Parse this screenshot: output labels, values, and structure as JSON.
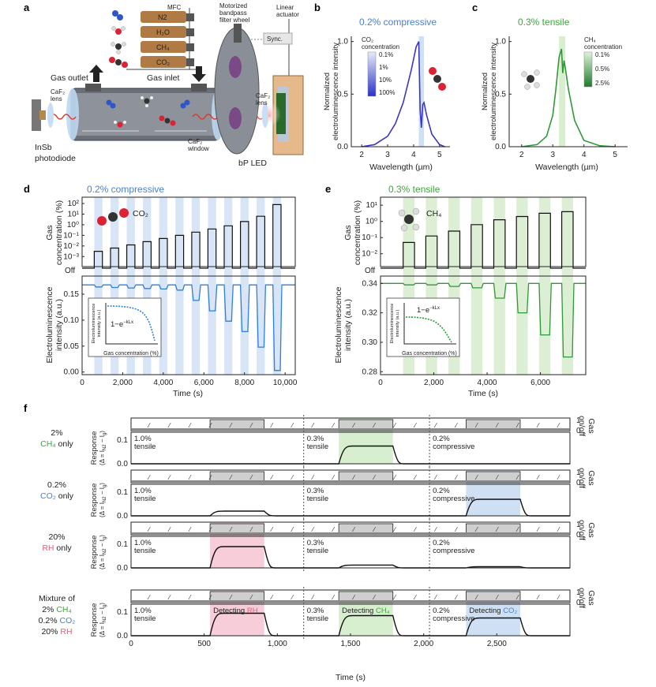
{
  "panel_labels": {
    "a": "a",
    "b": "b",
    "c": "c",
    "d": "d",
    "e": "e",
    "f": "f"
  },
  "panel_a": {
    "mfc": "MFC",
    "gases": [
      "N2",
      "H₂O",
      "CH₄",
      "CO₂"
    ],
    "wheel": [
      "Motorized",
      "bandpass",
      "filter wheel"
    ],
    "actuator": [
      "Linear",
      "actuator"
    ],
    "sync": "Sync.",
    "gas_outlet": "Gas outlet",
    "gas_inlet": "Gas inlet",
    "caf2_lens_left": [
      "CaF₂",
      "lens"
    ],
    "caf2_lens_right": [
      "CaF₂",
      "lens"
    ],
    "caf2_window": [
      "CaF₂",
      "window"
    ],
    "photodiode": [
      "InSb",
      "photodiode"
    ],
    "led": "bP LED"
  },
  "panel_b": {
    "title": "0.2% compressive",
    "ylabel": [
      "Normalized",
      "electroluminescence intensity"
    ],
    "xlabel": "Wavelength (µm)",
    "legend_title": [
      "CO₂",
      "concentration"
    ],
    "legend_entries": [
      "0.1%",
      "1%",
      "10%",
      "100%"
    ]
  },
  "panel_c": {
    "title": "0.3% tensile",
    "ylabel": [
      "Normalized",
      "electroluminescence intensity"
    ],
    "xlabel": "Wavelength (µm)",
    "legend_title": [
      "CH₄",
      "concentration"
    ],
    "legend_entries": [
      "0.1%",
      "0.5%",
      "2.5%"
    ]
  },
  "panel_d": {
    "title": "0.2% compressive",
    "gas": "CO₂",
    "ylabel_top": [
      "Gas",
      "concentration (%)"
    ],
    "ylabel_bottom": [
      "Electroluminescence",
      "intensity (a.u.)"
    ],
    "xlabel": "Time (s)",
    "off_label": "Off",
    "inset_ylabel": [
      "Electroluminescence",
      "intensity (a.u.)"
    ],
    "inset_xlabel": "Gas concentration (%)",
    "inset_formula": "1−e",
    "inset_formula_exp": "−kLx"
  },
  "panel_e": {
    "title": "0.3% tensile",
    "gas": "CH₄",
    "ylabel_top": [
      "Gas",
      "concentration (%)"
    ],
    "ylabel_bottom": [
      "Electroluminescence",
      "intensity (a.u.)"
    ],
    "xlabel": "Time (s)",
    "off_label": "Off",
    "inset_ylabel": [
      "Electroluminescence",
      "intensity (a.u.)"
    ],
    "inset_xlabel": "Gas concentration (%)",
    "inset_formula": "1−e",
    "inset_formula_exp": "−kLx"
  },
  "panel_f": {
    "rows": [
      {
        "label": [
          "2%",
          "CH₄",
          "only"
        ],
        "gas_color": "#3aa83a"
      },
      {
        "label": [
          "0.2%",
          "CO₂",
          "only"
        ],
        "gas_color": "#4a7fd0"
      },
      {
        "label": [
          "20%",
          "RH",
          "only"
        ],
        "gas_color": "#e0607a"
      },
      {
        "label": [
          "Mixture of",
          "2% CH₄",
          "0.2% CO₂",
          "20% RH"
        ],
        "gas_color": "#222222"
      }
    ],
    "ylabel": [
      "Response",
      "(Δ = I",
      "N2",
      " − I",
      "g",
      ")"
    ],
    "gas_onoff": [
      "Gas",
      "on/off"
    ],
    "sections": [
      {
        "strain": [
          "1.0%",
          "tensile"
        ]
      },
      {
        "strain": [
          "0.3%",
          "tensile"
        ]
      },
      {
        "strain": [
          "0.2%",
          "compressive"
        ]
      }
    ],
    "detecting": [
      "Detecting ",
      "RH",
      "CH₄",
      "CO₂"
    ],
    "xlabel": "Time (s)"
  },
  "chart_data": [
    {
      "id": "b",
      "type": "line",
      "title": "0.2% compressive",
      "xlabel": "Wavelength (µm)",
      "ylabel": "Normalized electroluminescence intensity",
      "xlim": [
        1.6,
        5.4
      ],
      "ylim": [
        0,
        1.05
      ],
      "xticks": [
        2,
        3,
        4,
        5
      ],
      "yticks": [
        0.0,
        0.5,
        1.0
      ],
      "highlight_band": [
        4.2,
        4.4
      ],
      "series": [
        {
          "name": "spectrum",
          "x": [
            2.0,
            2.5,
            3.0,
            3.3,
            3.6,
            3.9,
            4.1,
            4.2,
            4.25,
            4.3,
            4.35,
            4.4,
            4.5,
            4.7,
            5.0,
            5.2
          ],
          "y": [
            0.0,
            0.02,
            0.1,
            0.22,
            0.42,
            0.72,
            0.95,
            1.0,
            0.35,
            0.18,
            0.4,
            0.42,
            0.3,
            0.12,
            0.02,
            0.0
          ]
        }
      ]
    },
    {
      "id": "c",
      "type": "line",
      "title": "0.3% tensile",
      "xlabel": "Wavelength (µm)",
      "ylabel": "Normalized electroluminescence intensity",
      "xlim": [
        1.6,
        5.4
      ],
      "ylim": [
        0,
        1.05
      ],
      "xticks": [
        2,
        3,
        4,
        5
      ],
      "yticks": [
        0.0,
        0.5,
        1.0
      ],
      "highlight_band": [
        3.2,
        3.4
      ],
      "series": [
        {
          "name": "spectrum",
          "x": [
            2.0,
            2.5,
            2.8,
            3.0,
            3.1,
            3.2,
            3.28,
            3.32,
            3.36,
            3.4,
            3.5,
            3.7,
            4.0,
            4.5,
            5.0
          ],
          "y": [
            0.0,
            0.02,
            0.1,
            0.3,
            0.55,
            0.85,
            0.93,
            0.7,
            0.82,
            0.75,
            0.55,
            0.25,
            0.06,
            0.01,
            0.0
          ]
        }
      ]
    },
    {
      "id": "d",
      "type": "line",
      "title": "0.2% compressive",
      "xlabel": "Time (s)",
      "xlim": [
        0,
        10500
      ],
      "xticks": [
        0,
        2000,
        4000,
        6000,
        8000,
        10000
      ],
      "xticklabels": [
        "0",
        "2,000",
        "4,000",
        "6,000",
        "8,000",
        "10,000"
      ],
      "top_yticks": [
        "10²",
        "10¹",
        "10⁰",
        "10⁻¹",
        "10⁻²",
        "10⁻³"
      ],
      "bottom_ylim": [
        -0.005,
        0.185
      ],
      "bottom_yticks": [
        0.0,
        0.05,
        0.1,
        0.15
      ],
      "pulse_start_s": [
        600,
        1400,
        2200,
        3000,
        3800,
        4600,
        5400,
        6200,
        7000,
        7800,
        8600,
        9400
      ],
      "pulse_log_concentration": [
        -2.5,
        -2.2,
        -1.9,
        -1.6,
        -1.3,
        -1.0,
        -0.7,
        -0.4,
        -0.1,
        0.3,
        0.8,
        1.9
      ],
      "pulse_intensity_drop": [
        0.004,
        0.005,
        0.006,
        0.007,
        0.008,
        0.01,
        0.03,
        0.05,
        0.07,
        0.09,
        0.12,
        0.165
      ],
      "baseline": 0.168
    },
    {
      "id": "e",
      "type": "line",
      "title": "0.3% tensile",
      "xlabel": "Time (s)",
      "xlim": [
        0,
        7700
      ],
      "xticks": [
        0,
        2000,
        4000,
        6000
      ],
      "xticklabels": [
        "0",
        "2,000",
        "4,000",
        "6,000"
      ],
      "top_yticks": [
        "10¹",
        "10⁰",
        "10⁻¹",
        "10⁻²"
      ],
      "bottom_ylim": [
        0.278,
        0.345
      ],
      "bottom_yticks": [
        0.28,
        0.3,
        0.32,
        0.34
      ],
      "pulse_start_s": [
        850,
        1700,
        2550,
        3400,
        4250,
        5100,
        5950,
        6800
      ],
      "pulse_log_concentration": [
        -1.3,
        -0.9,
        -0.6,
        -0.2,
        0.1,
        0.3,
        0.5,
        0.6
      ],
      "pulse_intensity_drop": [
        0.001,
        0.001,
        0.002,
        0.003,
        0.01,
        0.02,
        0.035,
        0.05
      ],
      "baseline": 0.34
    },
    {
      "id": "f",
      "type": "line",
      "xlabel": "Time (s)",
      "xlim": [
        0,
        3000
      ],
      "xticks": [
        0,
        500,
        1000,
        1500,
        2000,
        2500
      ],
      "xticklabels": [
        "0",
        "500",
        "1,000",
        "1,500",
        "2,000",
        "2,500"
      ],
      "yticks": [
        0.0,
        0.1
      ],
      "section_boundaries_s": [
        1180,
        2040
      ],
      "gas_on_windows_s": [
        [
          540,
          910
        ],
        [
          1420,
          1790
        ],
        [
          2290,
          2660
        ]
      ],
      "responses": [
        {
          "row": "2% CH4 only",
          "levels": [
            0.0,
            0.075,
            0.0
          ]
        },
        {
          "row": "0.2% CO2 only",
          "levels": [
            0.02,
            0.0,
            0.07
          ]
        },
        {
          "row": "20% RH only",
          "levels": [
            0.09,
            0.012,
            0.005
          ]
        },
        {
          "row": "Mixture",
          "levels": [
            0.095,
            0.085,
            0.075
          ]
        }
      ]
    }
  ]
}
